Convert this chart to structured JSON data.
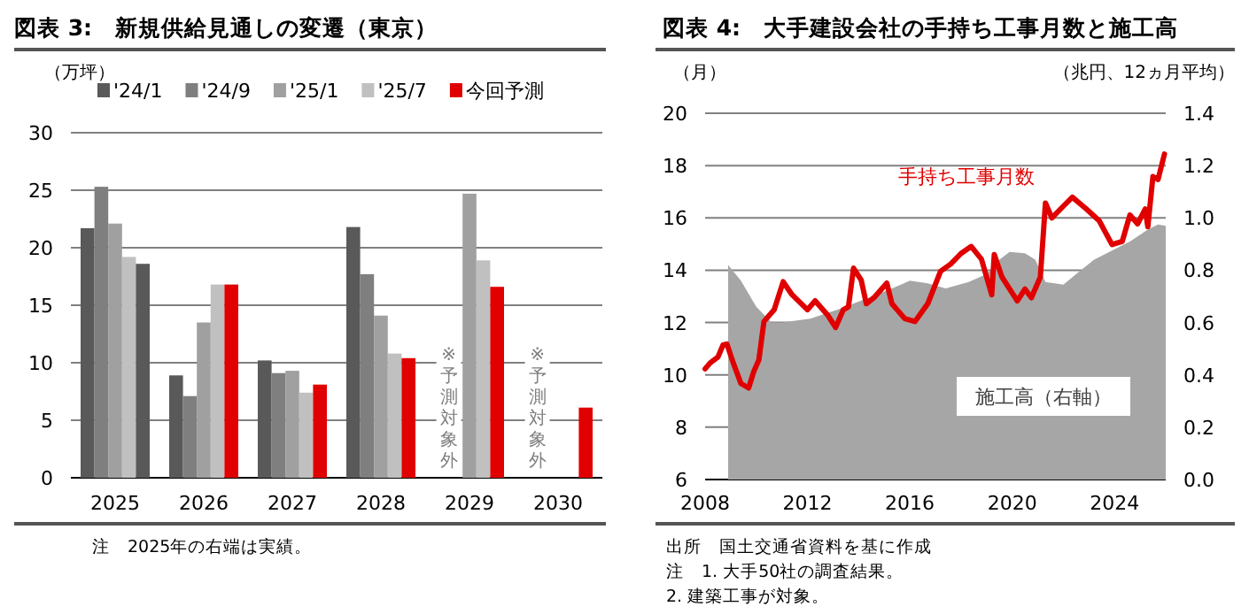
{
  "chart_data": [
    {
      "type": "bar",
      "title": "図表 3:　新規供給見通しの変遷（東京）",
      "ylabel": "（万坪）",
      "categories": [
        "2025",
        "2026",
        "2027",
        "2028",
        "2029",
        "2030"
      ],
      "series": [
        {
          "name": "'24/1",
          "color": "#595959",
          "values": [
            21.7,
            8.9,
            10.2,
            21.8,
            null,
            null
          ]
        },
        {
          "name": "'24/9",
          "color": "#7f7f7f",
          "values": [
            25.3,
            7.1,
            9.1,
            17.7,
            null,
            null
          ]
        },
        {
          "name": "'25/1",
          "color": "#a0a0a0",
          "values": [
            22.1,
            13.5,
            9.3,
            14.1,
            24.7,
            null
          ]
        },
        {
          "name": "'25/7",
          "color": "#c0c0c0",
          "values": [
            19.2,
            16.8,
            7.4,
            10.8,
            18.9,
            null
          ]
        },
        {
          "name": "今回予測",
          "color": "#e00000",
          "colors": [
            "#595959",
            "#e00000",
            "#e00000",
            "#e00000",
            "#e00000",
            "#e00000"
          ],
          "values": [
            18.6,
            16.8,
            8.1,
            10.4,
            16.6,
            6.1
          ]
        }
      ],
      "ylim": [
        0,
        30
      ],
      "yticks": [
        0,
        5,
        10,
        15,
        20,
        25,
        30
      ],
      "grid": "y",
      "legend": "top",
      "annotations": [
        "※予測対象外",
        "※予測対象外",
        "注　2025年の右端は実績。"
      ]
    },
    {
      "type": "line",
      "title": "図表 4:　大手建設会社の手持ち工事月数と施工高",
      "ylabel": "（月）",
      "y2label": "（兆円、12ヵ月平均）",
      "xlim": [
        2008,
        2026
      ],
      "xticks": [
        2008,
        2012,
        2016,
        2020,
        2024
      ],
      "ylim": [
        6,
        20
      ],
      "yticks": [
        6,
        8,
        10,
        12,
        14,
        16,
        18,
        20
      ],
      "y2lim": [
        0,
        1.4
      ],
      "y2ticks": [
        {
          "value": 0,
          "label": "0.0"
        },
        {
          "value": 0.2,
          "label": "0.2"
        },
        {
          "value": 0.4,
          "label": "0.4"
        },
        {
          "value": 0.6,
          "label": "0.6"
        },
        {
          "value": 0.8,
          "label": "0.8"
        },
        {
          "value": 1,
          "label": "1.0"
        },
        {
          "value": 1.2,
          "label": "1.2"
        },
        {
          "value": 1.4,
          "label": "1.4"
        }
      ],
      "grid": "y",
      "legend": false,
      "series": [
        {
          "name": "施工高（右軸）",
          "type": "area",
          "axis": "y2",
          "color": "#a6a6a6",
          "x": [
            2008.9,
            2009.4,
            2010.0,
            2010.6,
            2011.0,
            2012.1,
            2013.2,
            2014.4,
            2015.3,
            2016.0,
            2016.7,
            2017.4,
            2018.3,
            2019.0,
            2019.5,
            2019.9,
            2020.5,
            2020.9,
            2021.3,
            2022.0,
            2022.5,
            2023.2,
            2023.9,
            2024.6,
            2025.3,
            2025.7,
            2026.0
          ],
          "values": [
            0.82,
            0.76,
            0.66,
            0.6,
            0.6,
            0.615,
            0.65,
            0.695,
            0.73,
            0.76,
            0.75,
            0.73,
            0.755,
            0.785,
            0.84,
            0.87,
            0.865,
            0.84,
            0.755,
            0.745,
            0.785,
            0.84,
            0.875,
            0.91,
            0.955,
            0.975,
            0.97
          ]
        },
        {
          "name": "手持ち工事月数",
          "type": "line",
          "color": "#e00000",
          "x": [
            2008.0,
            2008.2,
            2008.5,
            2008.7,
            2008.85,
            2009.1,
            2009.4,
            2009.7,
            2009.9,
            2010.1,
            2010.3,
            2010.7,
            2011.05,
            2011.4,
            2012.0,
            2012.3,
            2012.8,
            2013.1,
            2013.4,
            2013.6,
            2013.8,
            2014.1,
            2014.3,
            2014.6,
            2015.1,
            2015.3,
            2015.8,
            2016.2,
            2016.7,
            2017.2,
            2017.6,
            2018.0,
            2018.4,
            2018.8,
            2019.2,
            2019.3,
            2019.6,
            2020.2,
            2020.5,
            2020.75,
            2021.1,
            2021.3,
            2021.55,
            2022.0,
            2022.35,
            2022.9,
            2023.4,
            2023.9,
            2024.3,
            2024.6,
            2024.9,
            2025.2,
            2025.3,
            2025.5,
            2025.7,
            2025.95
          ],
          "values": [
            10.23,
            10.46,
            10.68,
            11.14,
            11.18,
            10.46,
            9.67,
            9.5,
            10.12,
            10.57,
            12.04,
            12.49,
            13.56,
            13.06,
            12.49,
            12.83,
            12.27,
            11.81,
            12.49,
            12.6,
            14.08,
            13.62,
            12.72,
            12.95,
            13.51,
            12.72,
            12.15,
            12.04,
            12.72,
            13.96,
            14.24,
            14.64,
            14.91,
            14.42,
            13.06,
            14.6,
            13.74,
            12.83,
            13.28,
            12.95,
            13.74,
            16.57,
            16.0,
            16.45,
            16.79,
            16.34,
            15.89,
            14.98,
            15.1,
            16.11,
            15.77,
            16.34,
            15.66,
            17.58,
            17.47,
            18.44
          ]
        }
      ],
      "annotations": [
        "出所　国土交通省資料を基に作成",
        "注　1. 大手50社の調査結果。",
        "2. 建築工事が対象。"
      ]
    }
  ]
}
